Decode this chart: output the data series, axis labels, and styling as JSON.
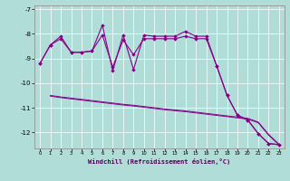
{
  "xlabel": "Windchill (Refroidissement éolien,°C)",
  "background_color": "#b0ddd8",
  "grid_color": "#ffffff",
  "line_color": "#880088",
  "xlim": [
    -0.5,
    23.5
  ],
  "ylim": [
    -12.65,
    -6.85
  ],
  "xticks": [
    0,
    1,
    2,
    3,
    4,
    5,
    6,
    7,
    8,
    9,
    10,
    11,
    12,
    13,
    14,
    15,
    16,
    17,
    18,
    19,
    20,
    21,
    22,
    23
  ],
  "yticks": [
    -12,
    -11,
    -10,
    -9,
    -8,
    -7
  ],
  "s1_x": [
    0,
    1,
    2,
    3,
    4,
    5,
    6,
    7,
    8,
    9,
    10,
    11,
    12,
    13,
    14,
    15,
    16,
    17,
    18,
    19,
    20,
    21,
    22,
    23
  ],
  "s1_y": [
    -9.2,
    -8.45,
    -8.1,
    -8.75,
    -8.75,
    -8.7,
    -7.65,
    -9.5,
    -8.05,
    -9.45,
    -8.05,
    -8.1,
    -8.1,
    -8.1,
    -7.9,
    -8.1,
    -8.1,
    -9.3,
    -10.5,
    -11.3,
    -11.5,
    -12.05,
    -12.45,
    -12.5
  ],
  "s2_x": [
    0,
    1,
    2,
    3,
    4,
    5,
    6,
    7,
    8,
    9,
    10,
    11,
    12,
    13,
    14,
    15,
    16,
    17,
    18,
    19,
    20,
    21,
    22,
    23
  ],
  "s2_y": [
    -9.2,
    -8.45,
    -8.2,
    -8.75,
    -8.75,
    -8.7,
    -8.05,
    -9.35,
    -8.25,
    -8.85,
    -8.2,
    -8.2,
    -8.2,
    -8.2,
    -8.1,
    -8.2,
    -8.2,
    -9.3,
    -10.5,
    -11.3,
    -11.5,
    -12.05,
    -12.45,
    -12.5
  ],
  "s3_x": [
    1,
    2,
    3,
    4,
    5,
    6,
    7,
    8,
    9,
    10,
    11,
    12,
    13,
    14,
    15,
    16,
    17,
    18,
    19,
    20,
    21,
    22,
    23
  ],
  "s3_y": [
    -10.5,
    -10.56,
    -10.61,
    -10.66,
    -10.71,
    -10.76,
    -10.81,
    -10.86,
    -10.9,
    -10.95,
    -11.0,
    -11.05,
    -11.09,
    -11.13,
    -11.18,
    -11.23,
    -11.28,
    -11.33,
    -11.38,
    -11.43,
    -11.58,
    -12.08,
    -12.48
  ],
  "s4_x": [
    1,
    2,
    3,
    4,
    5,
    6,
    7,
    8,
    9,
    10,
    11,
    12,
    13,
    14,
    15,
    16,
    17,
    18,
    19,
    20,
    21,
    22,
    23
  ],
  "s4_y": [
    -10.53,
    -10.59,
    -10.64,
    -10.69,
    -10.74,
    -10.79,
    -10.84,
    -10.89,
    -10.93,
    -10.98,
    -11.03,
    -11.08,
    -11.12,
    -11.16,
    -11.21,
    -11.26,
    -11.31,
    -11.36,
    -11.41,
    -11.46,
    -11.61,
    -12.11,
    -12.51
  ]
}
